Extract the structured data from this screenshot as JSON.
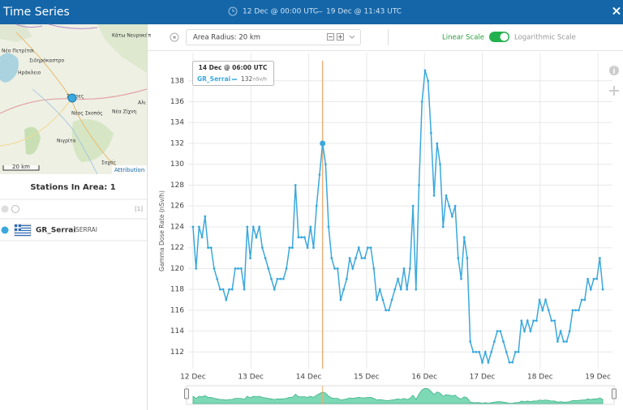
{
  "header": {
    "title": "Time Series",
    "start": "12 Dec @ 00:00 UTC",
    "separator": "—",
    "end": "19 Dec @ 11:43 UTC",
    "close": "×"
  },
  "map": {
    "labels": [
      "Κάτω Νευροκόπ",
      "Νέο Πετρίτσι",
      "Σιδηρόκαστρο",
      "Ηράκλειο",
      "Σέρρες",
      "Νέος Σκοπός",
      "Νέα Ζίχνη",
      "Αλι",
      "Νιγρίτα",
      "Σοχός"
    ],
    "scale": "20 km",
    "attribution": "Attribution"
  },
  "stations": {
    "title": "Stations In Area: 1",
    "count": "[1]",
    "items": [
      {
        "name": "GR_Serrai",
        "location": "SERRAI"
      }
    ]
  },
  "toolbar": {
    "radius": "Area Radius: 20 km",
    "linear": "Linear Scale",
    "log": "Logarithmic Scale",
    "log_scale": false
  },
  "chart_data": {
    "type": "line",
    "ylabel": "Gamma Dose Rate (nSv/h)",
    "x": [
      0,
      1.25,
      2.5,
      3.75,
      5,
      6.25,
      7.5,
      8.75,
      10,
      11.25,
      12.5,
      13.75,
      15,
      16.25,
      17.5,
      18.75,
      20,
      21.25,
      22.5,
      23.75,
      25,
      26.25,
      27.5,
      28.75,
      30,
      31.25,
      32.5,
      33.75,
      35,
      36.25,
      37.5,
      38.75,
      40,
      41.25,
      42.5,
      43.75,
      45,
      46.25,
      47.5,
      48.75,
      50,
      51.25,
      52.5,
      53.75,
      55,
      56.25,
      57.5,
      58.75,
      60,
      61.25,
      62.5,
      63.75,
      65,
      66.25,
      67.5,
      68.75,
      70,
      71.25,
      72.5,
      73.75,
      75,
      76.25,
      77.5,
      78.75,
      80,
      81.25,
      82.5,
      83.75,
      85,
      86.25,
      87.5,
      88.75,
      90,
      91.25,
      92.5,
      93.75,
      95,
      96.25,
      97.5,
      98.75,
      100,
      101.25,
      102.5,
      103.75,
      105,
      106.25,
      107.5,
      108.75,
      110,
      111.25,
      112.5,
      113.75,
      115,
      116.25,
      117.5,
      118.75,
      120,
      121.25,
      122.5,
      123.75,
      125,
      126.25,
      127.5,
      128.75,
      130,
      131.25,
      132.5,
      133.75,
      135,
      136.25,
      137.5,
      138.75,
      140,
      141.25,
      142.5,
      143.75,
      145,
      146.25,
      147.5,
      148.75,
      150,
      151.25,
      152.5,
      153.75,
      155,
      156.25,
      157.5,
      158.75,
      160,
      161.25,
      162.5,
      163.75,
      165,
      166.25,
      167.5,
      168.75,
      170
    ],
    "series": [
      {
        "name": "GR_Serrai",
        "color": "#3aa8dc",
        "values": [
          124,
          120,
          124,
          123,
          125,
          122,
          122,
          120,
          119,
          118,
          118,
          117,
          118,
          118,
          120,
          120,
          120,
          118,
          124,
          121,
          124,
          123,
          124,
          122,
          121,
          120,
          119,
          118,
          119,
          119,
          119,
          120,
          122,
          122,
          128,
          123,
          123,
          123,
          122,
          124,
          122,
          126,
          129,
          132,
          130,
          124,
          121,
          120,
          120,
          117,
          118,
          119,
          121,
          120,
          121,
          122,
          121,
          121,
          122,
          122,
          120,
          117,
          118,
          117,
          116,
          116,
          117,
          118,
          119,
          118,
          120,
          118,
          120,
          126,
          118,
          128,
          136,
          139,
          138,
          133,
          127,
          132,
          130,
          124,
          127,
          126,
          125,
          126,
          121,
          119,
          123,
          121,
          113,
          112,
          112,
          112,
          111,
          112,
          111,
          112,
          113,
          114,
          114,
          113,
          112,
          111,
          111,
          112,
          112,
          115,
          114,
          115,
          114,
          115,
          115,
          117,
          116,
          117,
          116,
          115,
          115,
          113,
          114,
          113,
          113,
          114,
          116,
          116,
          116,
          117,
          117,
          119,
          118,
          119,
          119,
          121,
          118
        ]
      }
    ],
    "xlim": [
      -2,
      174
    ],
    "xticks": [
      {
        "value": 0,
        "label": "12 Dec"
      },
      {
        "value": 24,
        "label": "13 Dec"
      },
      {
        "value": 48,
        "label": "14 Dec"
      },
      {
        "value": 72,
        "label": "15 Dec"
      },
      {
        "value": 96,
        "label": "16 Dec"
      },
      {
        "value": 120,
        "label": "17 Dec"
      },
      {
        "value": 144,
        "label": "18 Dec"
      },
      {
        "value": 168,
        "label": "19 Dec"
      }
    ],
    "ylim": [
      110.4,
      140.7
    ],
    "yticks": [
      112,
      114,
      116,
      118,
      120,
      122,
      124,
      126,
      128,
      130,
      132,
      134,
      136,
      138
    ],
    "grid": true,
    "highlight_index": 43,
    "tooltip": {
      "title": "14 Dec @ 06:00 UTC",
      "unit": "nSv/h"
    }
  }
}
